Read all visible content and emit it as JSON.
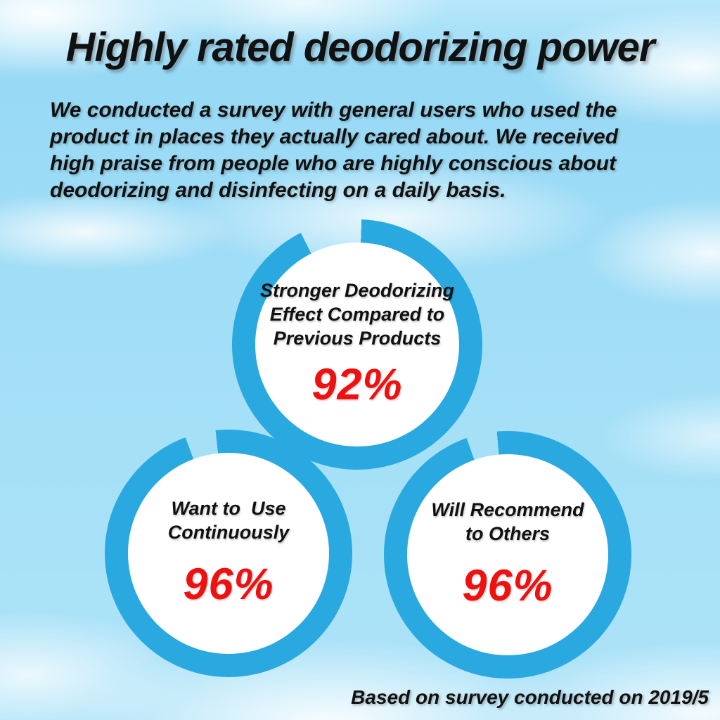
{
  "header": {
    "title": "Highly rated deodorizing power",
    "description_lines": [
      "We conducted a survey with general users who used the",
      "product in places they actually cared about. We received",
      "high praise from people who are highly conscious about",
      "deodorizing and disinfecting on a daily basis."
    ]
  },
  "chart_data": {
    "type": "pie",
    "variant": "donut-percentage-rings",
    "unit": "%",
    "ring_color": "#29a9e0",
    "gap_color": "transparent",
    "value_color": "#ee1111",
    "center_color": "#ffffff",
    "rings": [
      {
        "name": "deodorizing-effect",
        "label": "Stronger Deodorizing Effect Compared to Previous Products",
        "label_lines": [
          "Stronger Deodorizing",
          "Effect Compared to",
          "Previous Products"
        ],
        "value": 92,
        "display": "92%"
      },
      {
        "name": "continuous-use",
        "label": "Want to Use Continuously",
        "label_lines": [
          "Want to  Use",
          "Continuously"
        ],
        "value": 96,
        "display": "96%"
      },
      {
        "name": "recommend-to-others",
        "label": "Will Recommend to Others",
        "label_lines": [
          "Will Recommend",
          "to Others"
        ],
        "value": 96,
        "display": "96%"
      }
    ]
  },
  "footer": {
    "note": "Based on survey conducted on 2019/5"
  },
  "colors": {
    "sky": "#a3e0f7",
    "cloud": "#ffffff",
    "ring_blue": "#29a9e0",
    "value_red": "#ee1111",
    "text": "#111111"
  }
}
